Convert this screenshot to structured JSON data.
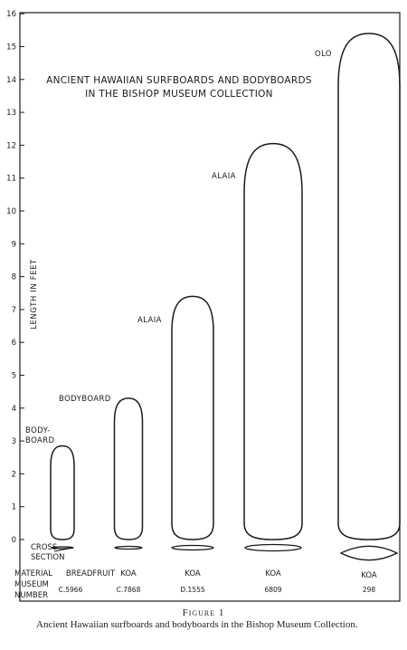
{
  "chart_data": {
    "type": "bar",
    "title_line1": "ANCIENT HAWAIIAN SURFBOARDS AND BODYBOARDS",
    "title_line2": "IN THE BISHOP MUSEUM COLLECTION",
    "ylabel": "LENGTH IN FEET",
    "ylim": [
      0,
      16
    ],
    "yticks": [
      "0",
      "1",
      "2",
      "3",
      "4",
      "5",
      "6",
      "7",
      "8",
      "9",
      "10",
      "11",
      "12",
      "13",
      "14",
      "15",
      "16"
    ],
    "grid": false,
    "row_labels": {
      "cross_section": "CROSS SECTION",
      "material": "MATERIAL",
      "museum": "MUSEUM",
      "number": "NUMBER"
    },
    "boards": [
      {
        "label": "BODY-BOARD",
        "label_lines": [
          "BODY-",
          "BOARD"
        ],
        "length_ft": 2.85,
        "material": "BREADFRUIT",
        "museum_number": "C.5966"
      },
      {
        "label": "BODYBOARD",
        "label_lines": [
          "BODYBOARD"
        ],
        "length_ft": 4.3,
        "material": "KOA",
        "museum_number": "C.7868"
      },
      {
        "label": "ALAIA",
        "label_lines": [
          "ALAIA"
        ],
        "length_ft": 7.4,
        "material": "KOA",
        "museum_number": "D.1555"
      },
      {
        "label": "ALAIA",
        "label_lines": [
          "ALAIA"
        ],
        "length_ft": 12.05,
        "material": "KOA",
        "museum_number": "6809"
      },
      {
        "label": "OLO",
        "label_lines": [
          "OLO"
        ],
        "length_ft": 15.4,
        "material": "KOA",
        "museum_number": "298"
      }
    ]
  },
  "caption": {
    "figure_label": "Figure 1",
    "text": "Ancient Hawaiian surfboards and bodyboards in the Bishop Museum Collection."
  }
}
